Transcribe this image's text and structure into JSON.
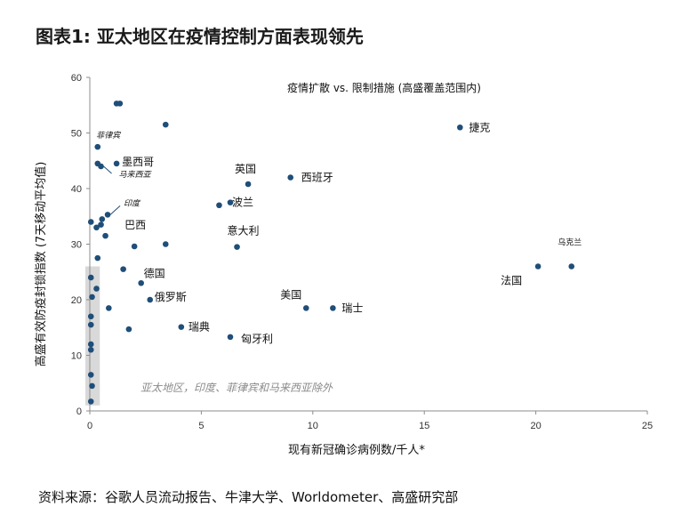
{
  "figure_title": "图表1: 亚太地区在疫情控制方面表现领先",
  "source_text": "资料来源：谷歌人员流动报告、牛津大学、Worldometer、高盛研究部",
  "colors": {
    "point": "#1f4e79",
    "band": "#d9d9d9",
    "axis": "#8c8c8c"
  },
  "chart_data": {
    "type": "scatter",
    "title": "疫情扩散 vs. 限制措施 (高盛覆盖范围内)",
    "xlabel": "现有新冠确诊病例数/千人*",
    "ylabel": "高盛有效防疫封锁指数 (7天移动平均值)",
    "xlim": [
      0,
      25
    ],
    "ylim": [
      0,
      60
    ],
    "xticks": [
      0,
      5,
      10,
      15,
      20,
      25
    ],
    "yticks": [
      0,
      10,
      20,
      30,
      40,
      50,
      60
    ],
    "grid": false,
    "annotation": "亚太地区，印度、菲律宾和马来西亚除外",
    "highlight_band": {
      "x": [
        -0.2,
        0.45
      ],
      "y": [
        1,
        26
      ]
    },
    "points": [
      {
        "x": 16.6,
        "y": 51.0,
        "label": "捷克"
      },
      {
        "x": 21.6,
        "y": 26.0,
        "label": "乌克兰"
      },
      {
        "x": 20.1,
        "y": 26.0,
        "label": "法国"
      },
      {
        "x": 9.0,
        "y": 42.0,
        "label": "西班牙"
      },
      {
        "x": 7.1,
        "y": 40.8,
        "label": "英国"
      },
      {
        "x": 6.3,
        "y": 37.5,
        "label": "波兰"
      },
      {
        "x": 5.8,
        "y": 37.0,
        "label": ""
      },
      {
        "x": 6.6,
        "y": 29.5,
        "label": "意大利"
      },
      {
        "x": 9.7,
        "y": 18.5,
        "label": "美国"
      },
      {
        "x": 10.9,
        "y": 18.5,
        "label": "瑞士"
      },
      {
        "x": 6.3,
        "y": 13.3,
        "label": "匈牙利"
      },
      {
        "x": 4.1,
        "y": 15.1,
        "label": "瑞典"
      },
      {
        "x": 2.7,
        "y": 20.0,
        "label": "俄罗斯"
      },
      {
        "x": 2.3,
        "y": 23.0,
        "label": "德国"
      },
      {
        "x": 2.0,
        "y": 29.6,
        "label": "巴西"
      },
      {
        "x": 1.2,
        "y": 44.5,
        "label": "墨西哥"
      },
      {
        "x": 0.5,
        "y": 44.0,
        "label": "马来西亚"
      },
      {
        "x": 0.35,
        "y": 47.5,
        "label": "菲律宾"
      },
      {
        "x": 0.8,
        "y": 35.3,
        "label": "印度"
      },
      {
        "x": 1.2,
        "y": 55.3,
        "label": ""
      },
      {
        "x": 1.35,
        "y": 55.3,
        "label": ""
      },
      {
        "x": 3.4,
        "y": 51.5,
        "label": ""
      },
      {
        "x": 3.4,
        "y": 30.0,
        "label": ""
      },
      {
        "x": 0.35,
        "y": 44.5,
        "label": ""
      },
      {
        "x": 0.05,
        "y": 34.0,
        "label": ""
      },
      {
        "x": 0.3,
        "y": 33.0,
        "label": ""
      },
      {
        "x": 0.5,
        "y": 33.5,
        "label": ""
      },
      {
        "x": 0.55,
        "y": 34.5,
        "label": ""
      },
      {
        "x": 0.7,
        "y": 31.5,
        "label": ""
      },
      {
        "x": 0.35,
        "y": 27.5,
        "label": ""
      },
      {
        "x": 1.5,
        "y": 25.5,
        "label": ""
      },
      {
        "x": 0.85,
        "y": 18.5,
        "label": ""
      },
      {
        "x": 1.75,
        "y": 14.7,
        "label": ""
      },
      {
        "x": 0.05,
        "y": 24.0,
        "label": ""
      },
      {
        "x": 0.3,
        "y": 22.0,
        "label": ""
      },
      {
        "x": 0.1,
        "y": 20.5,
        "label": ""
      },
      {
        "x": 0.05,
        "y": 17.0,
        "label": ""
      },
      {
        "x": 0.05,
        "y": 15.5,
        "label": ""
      },
      {
        "x": 0.05,
        "y": 12.0,
        "label": ""
      },
      {
        "x": 0.05,
        "y": 11.0,
        "label": ""
      },
      {
        "x": 0.05,
        "y": 6.5,
        "label": ""
      },
      {
        "x": 0.1,
        "y": 4.5,
        "label": ""
      },
      {
        "x": 0.05,
        "y": 1.7,
        "label": ""
      }
    ]
  }
}
